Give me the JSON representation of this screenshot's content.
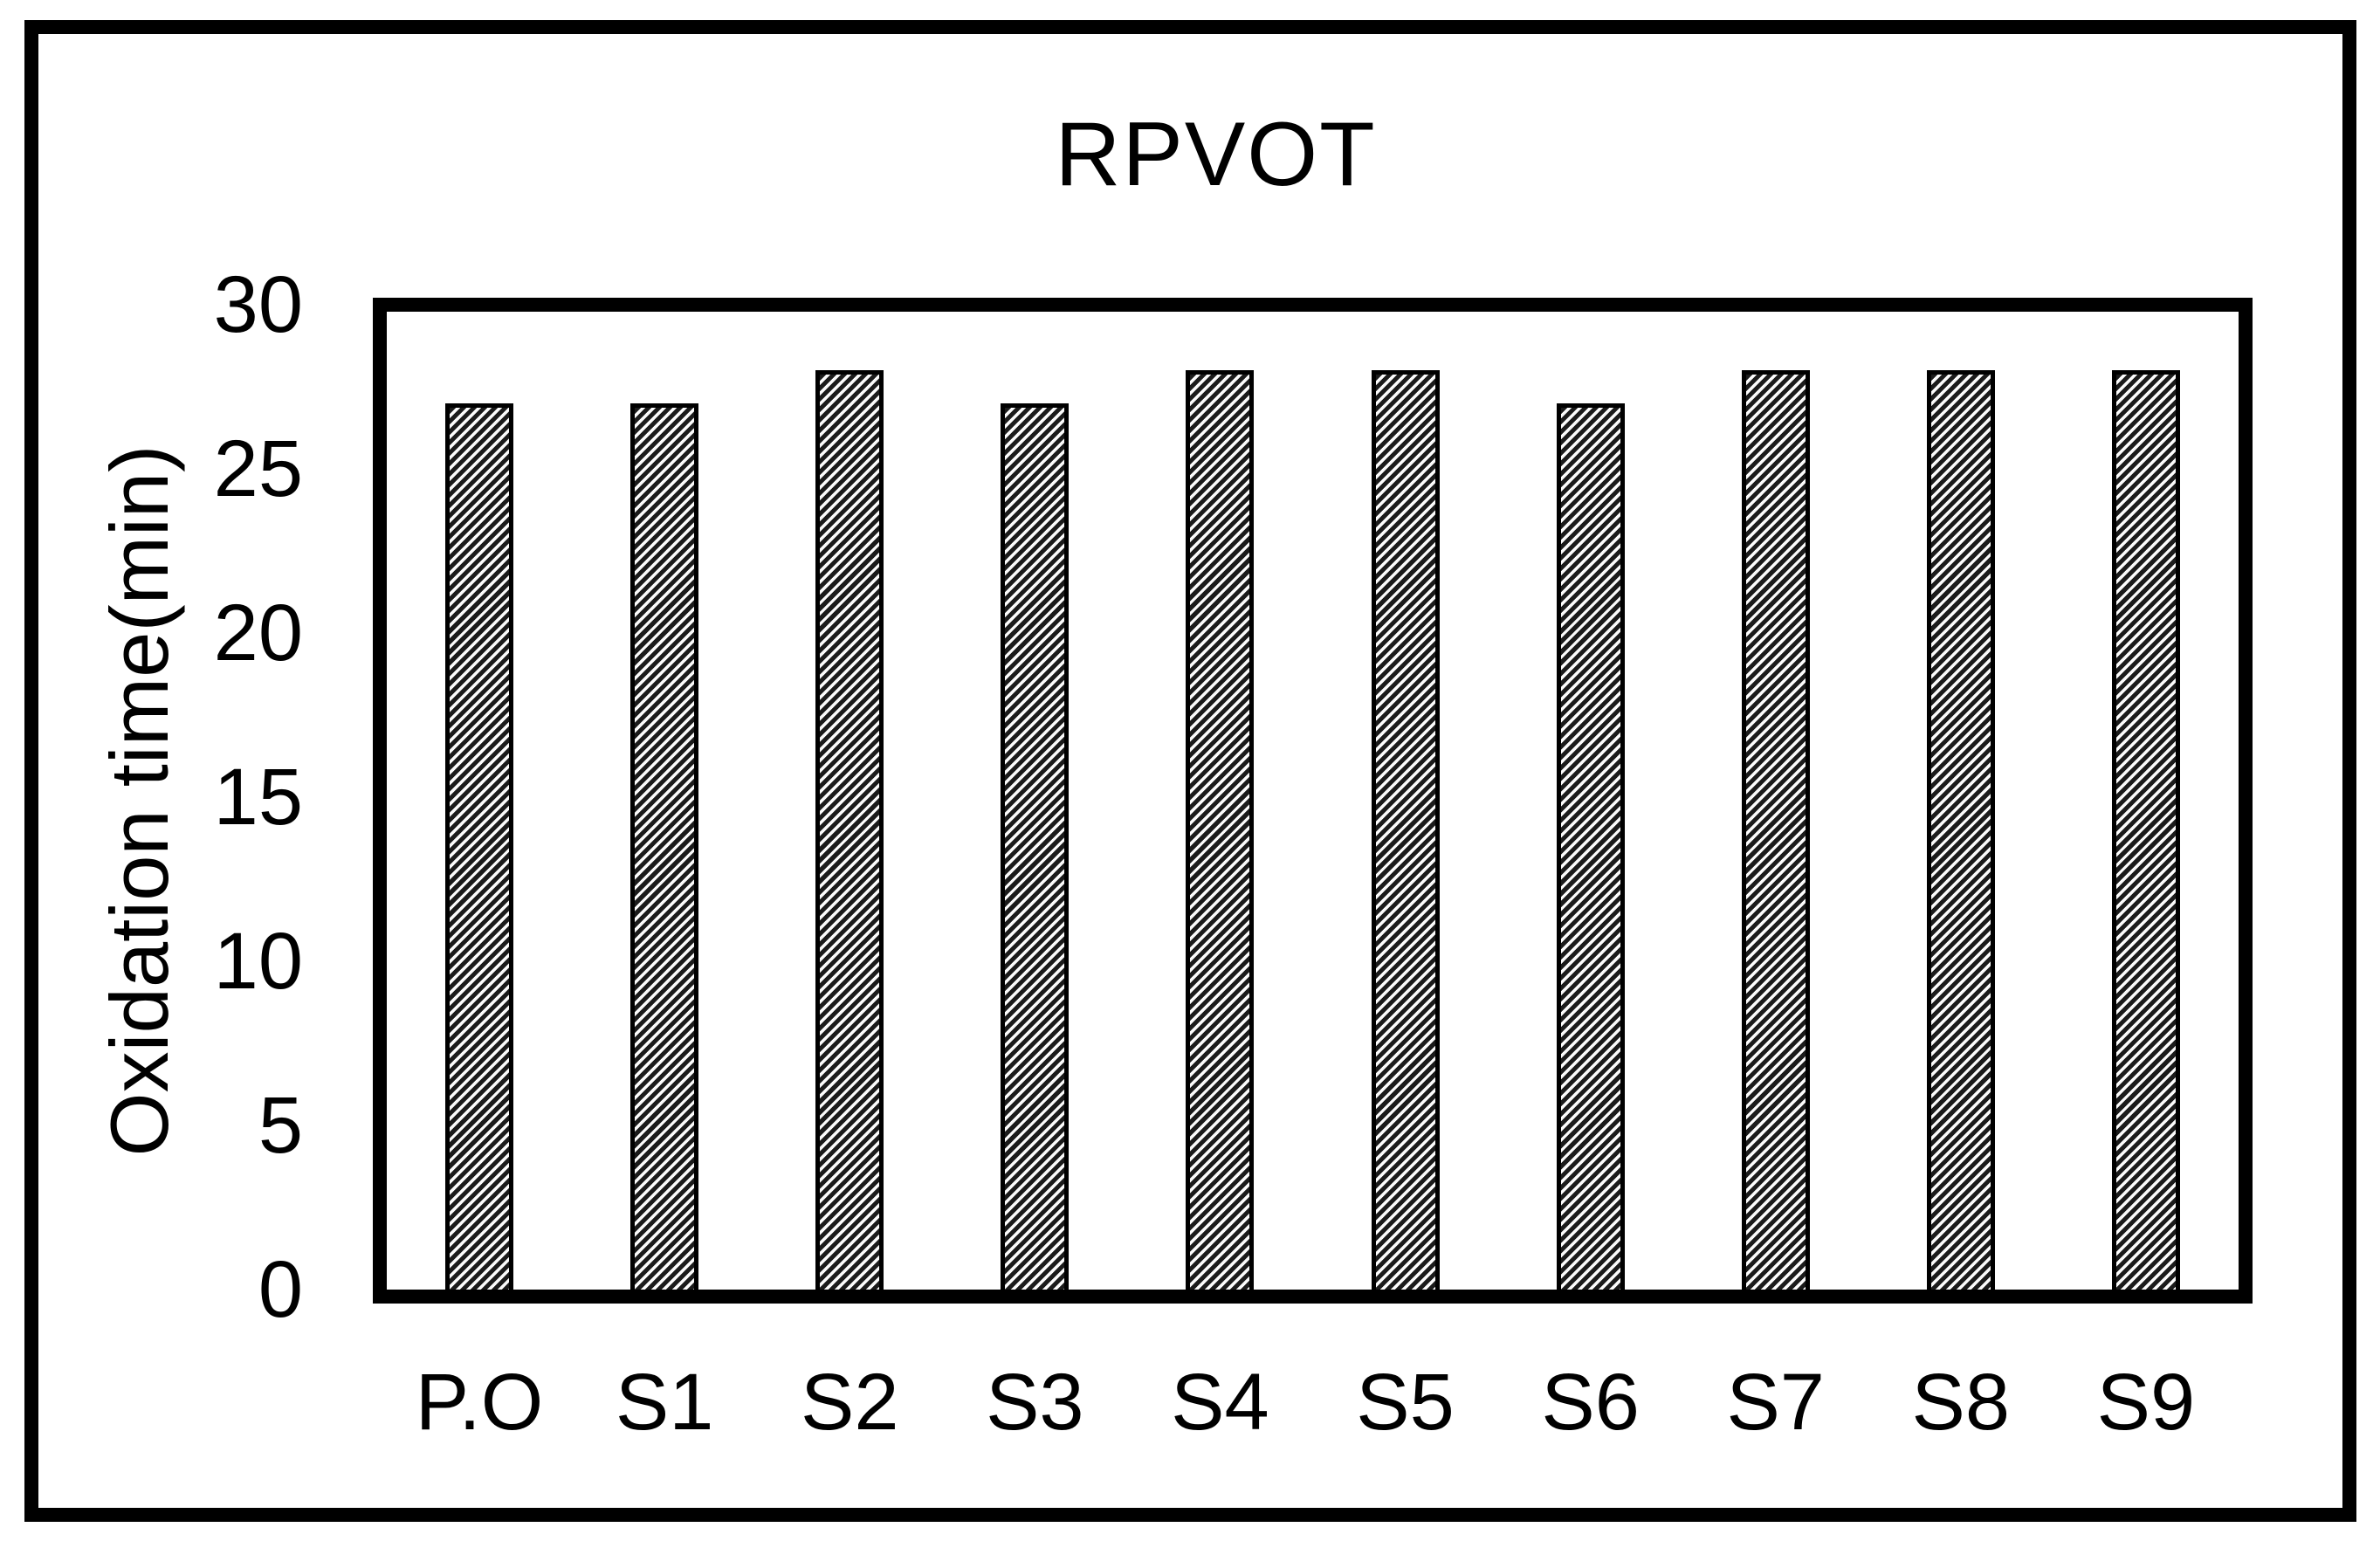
{
  "figure": {
    "background": "#ffffff",
    "frame_color": "#000000"
  },
  "chart_data": {
    "type": "bar",
    "title": "RPVOT",
    "xlabel": "",
    "ylabel": "Oxidation time(min)",
    "categories": [
      "P.O",
      "S1",
      "S2",
      "S3",
      "S4",
      "S5",
      "S6",
      "S7",
      "S8",
      "S9"
    ],
    "values": [
      27,
      27,
      28,
      27,
      28,
      28,
      27,
      28,
      28,
      28
    ],
    "ylim": [
      0,
      30
    ],
    "yticks": [
      0,
      5,
      10,
      15,
      20,
      25,
      30
    ],
    "grid": false,
    "legend_position": "none",
    "bar_style": {
      "fill": "diagonal-hatch",
      "hatch_dark": "#1b1b1b",
      "hatch_light": "#fbfbfb",
      "outline": "#000000"
    }
  }
}
